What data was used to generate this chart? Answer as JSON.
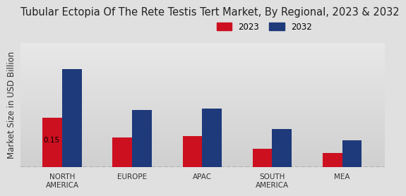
{
  "title": "Tubular Ectopia Of The Rete Testis Tert Market, By Regional, 2023 & 2032",
  "ylabel": "Market Size in USD Billion",
  "categories": [
    "NORTH\nAMERICA",
    "EUROPE",
    "APAC",
    "SOUTH\nAMERICA",
    "MEA"
  ],
  "values_2023": [
    0.15,
    0.09,
    0.095,
    0.055,
    0.042
  ],
  "values_2032": [
    0.3,
    0.175,
    0.178,
    0.115,
    0.082
  ],
  "color_2023": "#cc1020",
  "color_2032": "#1e3a7a",
  "label_2023": "2023",
  "label_2032": "2032",
  "annotation_text": "0.15",
  "background_top": "#e8e8e8",
  "background_bottom": "#d0d0d0",
  "bar_width": 0.28,
  "ylim": [
    0,
    0.38
  ],
  "title_fontsize": 10.5,
  "axis_label_fontsize": 8.5,
  "tick_fontsize": 7.5,
  "legend_fontsize": 8.5
}
